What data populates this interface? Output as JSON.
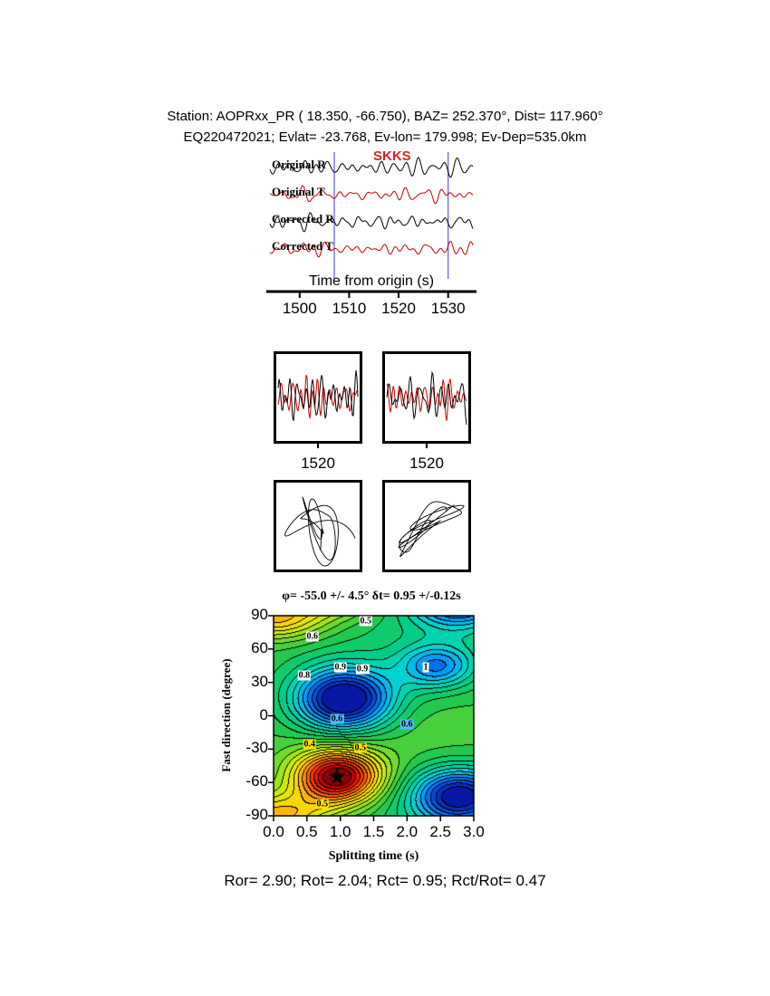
{
  "header": {
    "line1": "Station: AOPRxx_PR ( 18.350, -66.750), BAZ= 252.370°, Dist= 117.960°",
    "line2": "EQ220472021; Evlat= -23.768, Ev-lon= 179.998; Ev-Dep=535.0km"
  },
  "footer": {
    "stats": "Ror= 2.90; Rot= 2.04; Rct= 0.95; Rct/Rot= 0.47"
  },
  "quality_stats": {
    "Ror": 2.9,
    "Rot": 2.04,
    "Rct": 0.95,
    "Rct_over_Rot": 0.47
  },
  "colors": {
    "black_trace": "#000000",
    "red_trace": "#cc0000",
    "window_line": "#5c5cd6",
    "phase": "#dd2222"
  },
  "chart_data": [
    {
      "type": "line",
      "id": "seismograms",
      "phase_label": "SKKS",
      "xlabel": "Time from origin (s)",
      "x_range": [
        1494,
        1535
      ],
      "x_ticks": [
        "1500",
        "1510",
        "1520",
        "1530"
      ],
      "x_tick_values": [
        1500,
        1510,
        1520,
        1530
      ],
      "window": [
        1507,
        1530
      ],
      "traces": [
        {
          "label": "Original R",
          "color": "#000000",
          "seed": 11
        },
        {
          "label": "Original T",
          "color": "#cc0000",
          "seed": 22
        },
        {
          "label": "Corrected R",
          "color": "#000000",
          "seed": 33
        },
        {
          "label": "Corrected T",
          "color": "#cc0000",
          "seed": 47
        }
      ]
    },
    {
      "type": "line",
      "id": "windowed-left",
      "x_ticks": [
        "1520"
      ],
      "seeds": [
        55,
        66
      ]
    },
    {
      "type": "line",
      "id": "windowed-right",
      "x_ticks": [
        "1520"
      ],
      "seeds": [
        77,
        88
      ]
    },
    {
      "type": "scatter",
      "id": "particle-motion-left",
      "seeds": [
        101,
        102
      ],
      "diagonal": false
    },
    {
      "type": "scatter",
      "id": "particle-motion-right",
      "seeds": [
        103,
        105
      ],
      "diagonal": true
    },
    {
      "type": "heatmap",
      "id": "splitting-misfit",
      "title": "φ= -55.0 +/- 4.5° δt= 0.95 +/-0.12s",
      "xlabel": "Splitting time (s)",
      "ylabel": "Fast direction (degree)",
      "x_range": [
        0,
        3
      ],
      "y_range": [
        -90,
        90
      ],
      "x_ticks": [
        "0.0",
        "0.5",
        "1.0",
        "1.5",
        "2.0",
        "2.5",
        "3.0"
      ],
      "y_ticks": [
        "90",
        "60",
        "30",
        "0",
        "-30",
        "-60",
        "-90"
      ],
      "best_fit": {
        "fast_direction_deg": -55.0,
        "fast_direction_err_deg": 4.5,
        "split_time_s": 0.95,
        "split_time_err_s": 0.12
      },
      "star": {
        "x": 0.95,
        "y": -55
      },
      "field": {
        "base": 0.55,
        "bands": 24,
        "features": [
          {
            "amp": -0.55,
            "x": 0.95,
            "sx": 0.45,
            "y": -55,
            "sy": 17
          },
          {
            "amp": 0.52,
            "x": 1.05,
            "sx": 0.52,
            "y": 15,
            "sy": 20
          },
          {
            "amp": 0.45,
            "x": 2.78,
            "sx": 0.5,
            "y": -72,
            "sy": 18
          },
          {
            "amp": 0.27,
            "x": 2.45,
            "sx": 0.4,
            "y": 45,
            "sy": 14
          },
          {
            "amp": -0.28,
            "x": 0.0,
            "sx": 0.55,
            "y": -90,
            "sy": 14
          },
          {
            "amp": 0.06,
            "x": 2.0,
            "sx": 1.2,
            "y": 85,
            "sy": 40
          },
          {
            "amp": -0.05,
            "x": 1.7,
            "sx": 1.5,
            "y": -35,
            "sy": 45
          }
        ],
        "colormap": [
          [
            0.0,
            110,
            0,
            0
          ],
          [
            0.06,
            190,
            0,
            0
          ],
          [
            0.13,
            255,
            40,
            0
          ],
          [
            0.22,
            255,
            130,
            0
          ],
          [
            0.3,
            255,
            210,
            0
          ],
          [
            0.38,
            220,
            240,
            0
          ],
          [
            0.46,
            130,
            225,
            40
          ],
          [
            0.55,
            40,
            200,
            70
          ],
          [
            0.64,
            0,
            205,
            130
          ],
          [
            0.72,
            0,
            215,
            205
          ],
          [
            0.8,
            0,
            170,
            255
          ],
          [
            0.88,
            0,
            85,
            230
          ],
          [
            1.0,
            10,
            10,
            150
          ]
        ]
      },
      "contour_labels": [
        {
          "text": "0.5",
          "x": 1.38,
          "y": 85,
          "bg": "#ffffff"
        },
        {
          "text": "0.6",
          "x": 0.58,
          "y": 71,
          "bg": "#ffffff"
        },
        {
          "text": "0.9",
          "x": 1.0,
          "y": 44,
          "bg": "#ffffff"
        },
        {
          "text": "0.9",
          "x": 1.33,
          "y": 42,
          "bg": "#ffffff"
        },
        {
          "text": "0.8",
          "x": 0.46,
          "y": 36,
          "bg": "#ffffff"
        },
        {
          "text": "1",
          "x": 2.28,
          "y": 44,
          "bg": "#ffffff"
        },
        {
          "text": "0.6",
          "x": 0.95,
          "y": -3,
          "bg": "#55bbff"
        },
        {
          "text": "0.6",
          "x": 2.0,
          "y": -8,
          "bg": "#55bbff"
        },
        {
          "text": "0.4",
          "x": 0.54,
          "y": -26,
          "bg": "#ffe000"
        },
        {
          "text": "0.5",
          "x": 1.3,
          "y": -29,
          "bg": "#ffe000"
        },
        {
          "text": "0.5",
          "x": 0.73,
          "y": -79,
          "bg": "#ffe000"
        }
      ]
    }
  ]
}
